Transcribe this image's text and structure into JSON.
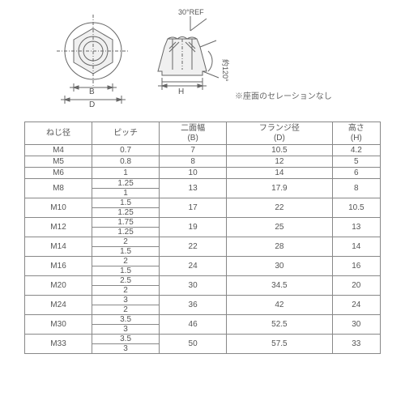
{
  "diagram": {
    "angle_top": "30°REF",
    "angle_side": "約120°",
    "dim_B": "B",
    "dim_D": "D",
    "dim_H": "H",
    "stroke": "#666666",
    "fill": "#f2f2f2",
    "hatch": "#888888"
  },
  "note": "※座面のセレーションなし",
  "table": {
    "headers": [
      "ねじ径",
      "ピッチ",
      "二面幅\n(B)",
      "フランジ径\n(D)",
      "高さ\n(H)"
    ],
    "rows": [
      {
        "size": "M4",
        "pitch": [
          "0.7"
        ],
        "b": "7",
        "d": "10.5",
        "h": "4.2"
      },
      {
        "size": "M5",
        "pitch": [
          "0.8"
        ],
        "b": "8",
        "d": "12",
        "h": "5"
      },
      {
        "size": "M6",
        "pitch": [
          "1"
        ],
        "b": "10",
        "d": "14",
        "h": "6"
      },
      {
        "size": "M8",
        "pitch": [
          "1.25",
          "1"
        ],
        "b": "13",
        "d": "17.9",
        "h": "8"
      },
      {
        "size": "M10",
        "pitch": [
          "1.5",
          "1.25"
        ],
        "b": "17",
        "d": "22",
        "h": "10.5"
      },
      {
        "size": "M12",
        "pitch": [
          "1.75",
          "1.25"
        ],
        "b": "19",
        "d": "25",
        "h": "13"
      },
      {
        "size": "M14",
        "pitch": [
          "2",
          "1.5"
        ],
        "b": "22",
        "d": "28",
        "h": "14"
      },
      {
        "size": "M16",
        "pitch": [
          "2",
          "1.5"
        ],
        "b": "24",
        "d": "30",
        "h": "16"
      },
      {
        "size": "M20",
        "pitch": [
          "2.5",
          "2"
        ],
        "b": "30",
        "d": "34.5",
        "h": "20"
      },
      {
        "size": "M24",
        "pitch": [
          "3",
          "2"
        ],
        "b": "36",
        "d": "42",
        "h": "24"
      },
      {
        "size": "M30",
        "pitch": [
          "3.5",
          "3"
        ],
        "b": "46",
        "d": "52.5",
        "h": "30"
      },
      {
        "size": "M33",
        "pitch": [
          "3.5",
          "3"
        ],
        "b": "50",
        "d": "57.5",
        "h": "33"
      }
    ]
  }
}
